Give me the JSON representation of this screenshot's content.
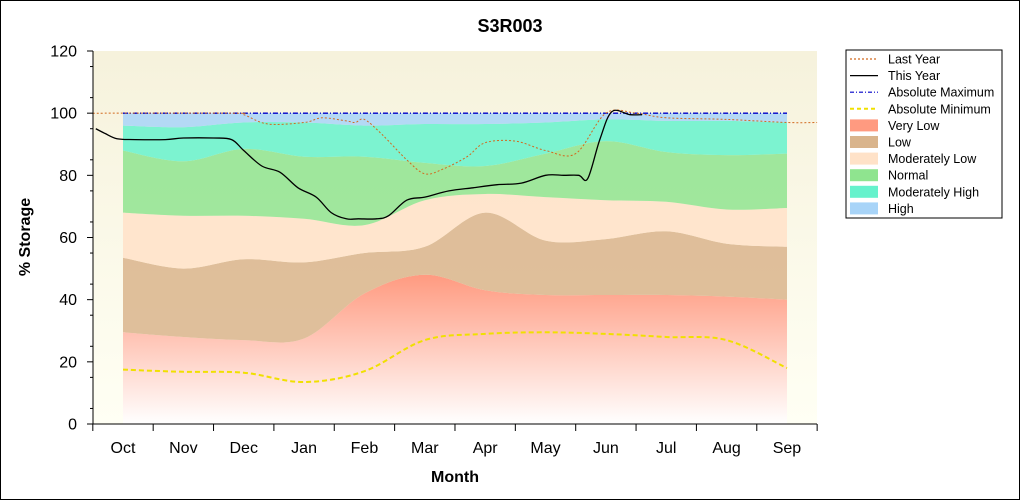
{
  "chart_data": {
    "type": "area",
    "title": "S3R003",
    "xlabel": "Month",
    "ylabel": "% Storage",
    "ylim": [
      0,
      120
    ],
    "yticks": [
      0,
      20,
      40,
      60,
      80,
      100,
      120
    ],
    "categories": [
      "Oct",
      "Nov",
      "Dec",
      "Jan",
      "Feb",
      "Mar",
      "Apr",
      "May",
      "Jun",
      "Jul",
      "Aug",
      "Sep"
    ],
    "grid": false,
    "legend_position": "top-right",
    "bands": [
      {
        "name": "Very Low",
        "color": "#ff9a80",
        "x": [
          0,
          1,
          2,
          3,
          4,
          5,
          6,
          7,
          8,
          9,
          10,
          11
        ],
        "lower": [
          0,
          0,
          0,
          0,
          0,
          0,
          0,
          0,
          0,
          0,
          0,
          0
        ],
        "upper": [
          29.5,
          28,
          27,
          27.5,
          42,
          48,
          43,
          41.5,
          41.5,
          41.5,
          41,
          40
        ]
      },
      {
        "name": "Low",
        "color": "#d9b48c",
        "x": [
          0,
          1,
          2,
          3,
          4,
          5,
          6,
          7,
          8,
          9,
          10,
          11
        ],
        "lower": [
          29.5,
          28,
          27,
          27.5,
          42,
          48,
          43,
          41.5,
          41.5,
          41.5,
          41,
          40
        ],
        "upper": [
          53.5,
          50,
          53,
          52,
          55,
          57,
          68,
          59,
          59.5,
          62,
          58,
          57
        ]
      },
      {
        "name": "Moderately Low",
        "color": "#ffe2c8",
        "x": [
          0,
          1,
          2,
          3,
          4,
          5,
          6,
          7,
          8,
          9,
          10,
          11
        ],
        "lower": [
          53.5,
          50,
          53,
          52,
          55,
          57,
          68,
          59,
          59.5,
          62,
          58,
          57
        ],
        "upper": [
          68,
          67,
          67,
          66,
          64,
          72,
          74,
          73,
          72,
          71.5,
          69,
          69.5
        ]
      },
      {
        "name": "Normal",
        "color": "#8fe48f",
        "x": [
          0,
          1,
          2,
          3,
          4,
          5,
          6,
          7,
          8,
          9,
          10,
          11
        ],
        "lower": [
          68,
          67,
          67,
          66,
          64,
          72,
          74,
          73,
          72,
          71.5,
          69,
          69.5
        ],
        "upper": [
          88,
          84.5,
          88.5,
          86,
          86,
          84,
          83,
          87,
          91,
          87.5,
          86.5,
          87
        ]
      },
      {
        "name": "Moderately High",
        "color": "#66f2cc",
        "x": [
          0,
          1,
          2,
          3,
          4,
          5,
          6,
          7,
          8,
          9,
          10,
          11
        ],
        "lower": [
          88,
          84.5,
          88.5,
          86,
          86,
          84,
          83,
          87,
          91,
          87.5,
          86.5,
          87
        ],
        "upper": [
          96,
          95.5,
          97,
          97,
          96,
          96.5,
          96.5,
          97,
          98,
          97.5,
          97.5,
          97
        ]
      },
      {
        "name": "High",
        "color": "#a8d4f8",
        "x": [
          0,
          1,
          2,
          3,
          4,
          5,
          6,
          7,
          8,
          9,
          10,
          11
        ],
        "lower": [
          96,
          95.5,
          97,
          97,
          96,
          96.5,
          96.5,
          97,
          98,
          97.5,
          97.5,
          97
        ],
        "upper": [
          100,
          100,
          100,
          100,
          100,
          100,
          100,
          100,
          100,
          100,
          100,
          100
        ]
      }
    ],
    "series": [
      {
        "name": "Last Year",
        "color": "#d2691e",
        "dash": "dotted",
        "x": [
          -0.5,
          1.8,
          2.0,
          2.4,
          3.0,
          3.3,
          3.7,
          3.85,
          4.0,
          4.3,
          4.7,
          5.0,
          5.3,
          5.7,
          6.0,
          6.5,
          7.0,
          7.5,
          8.0,
          8.5,
          9.0,
          10.0,
          11.0,
          11.5
        ],
        "y": [
          100,
          100,
          99.5,
          96.5,
          97,
          98.5,
          97.5,
          97,
          98,
          93,
          85,
          80.5,
          82,
          86,
          90.5,
          91,
          88,
          87,
          100,
          100,
          98.5,
          98,
          97,
          97
        ]
      },
      {
        "name": "This Year",
        "color": "#000000",
        "dash": "solid",
        "x": [
          -0.45,
          -0.3,
          -0.1,
          0.2,
          0.7,
          1.0,
          1.5,
          1.8,
          2.0,
          2.3,
          2.6,
          2.9,
          3.2,
          3.45,
          3.7,
          3.9,
          4.2,
          4.4,
          4.7,
          5.0,
          5.4,
          5.8,
          6.2,
          6.6,
          7.0,
          7.3,
          7.55,
          7.7,
          7.9,
          8.1,
          8.4,
          8.6
        ],
        "y": [
          95,
          93.5,
          91.8,
          91.5,
          91.5,
          92,
          92,
          91.5,
          88,
          83,
          81,
          76,
          73,
          68,
          66,
          66,
          66,
          67,
          72,
          73,
          75,
          76,
          77,
          77.5,
          80,
          80,
          80,
          79,
          91.5,
          100.5,
          99.5,
          99.5
        ]
      },
      {
        "name": "Absolute Maximum",
        "color": "#0000c8",
        "dash": "dashdot",
        "x": [
          0,
          11
        ],
        "y": [
          100,
          100
        ]
      },
      {
        "name": "Absolute Minimum",
        "color": "#f0e000",
        "dash": "dashed",
        "x": [
          0,
          1,
          2,
          3,
          4,
          5,
          6,
          7,
          8,
          9,
          10,
          11
        ],
        "y": [
          17.5,
          16.8,
          16.5,
          13.5,
          17,
          27,
          29,
          29.5,
          29,
          28,
          27,
          18
        ]
      }
    ],
    "legend": [
      {
        "label": "Last Year",
        "kind": "line",
        "color": "#d2691e",
        "dash": "2,2"
      },
      {
        "label": "This Year",
        "kind": "line",
        "color": "#000000",
        "dash": ""
      },
      {
        "label": "Absolute Maximum",
        "kind": "line",
        "color": "#0000c8",
        "dash": "4,2,1,2"
      },
      {
        "label": "Absolute Minimum",
        "kind": "line",
        "color": "#f0e000",
        "dash": "4,3"
      },
      {
        "label": "Very Low",
        "kind": "box",
        "color": "#ff9a80"
      },
      {
        "label": "Low",
        "kind": "box",
        "color": "#d9b48c"
      },
      {
        "label": "Moderately Low",
        "kind": "box",
        "color": "#ffe2c8"
      },
      {
        "label": "Normal",
        "kind": "box",
        "color": "#8fe48f"
      },
      {
        "label": "Moderately High",
        "kind": "box",
        "color": "#66f2cc"
      },
      {
        "label": "High",
        "kind": "box",
        "color": "#a8d4f8"
      }
    ],
    "plot_background": "#fcfce0"
  }
}
